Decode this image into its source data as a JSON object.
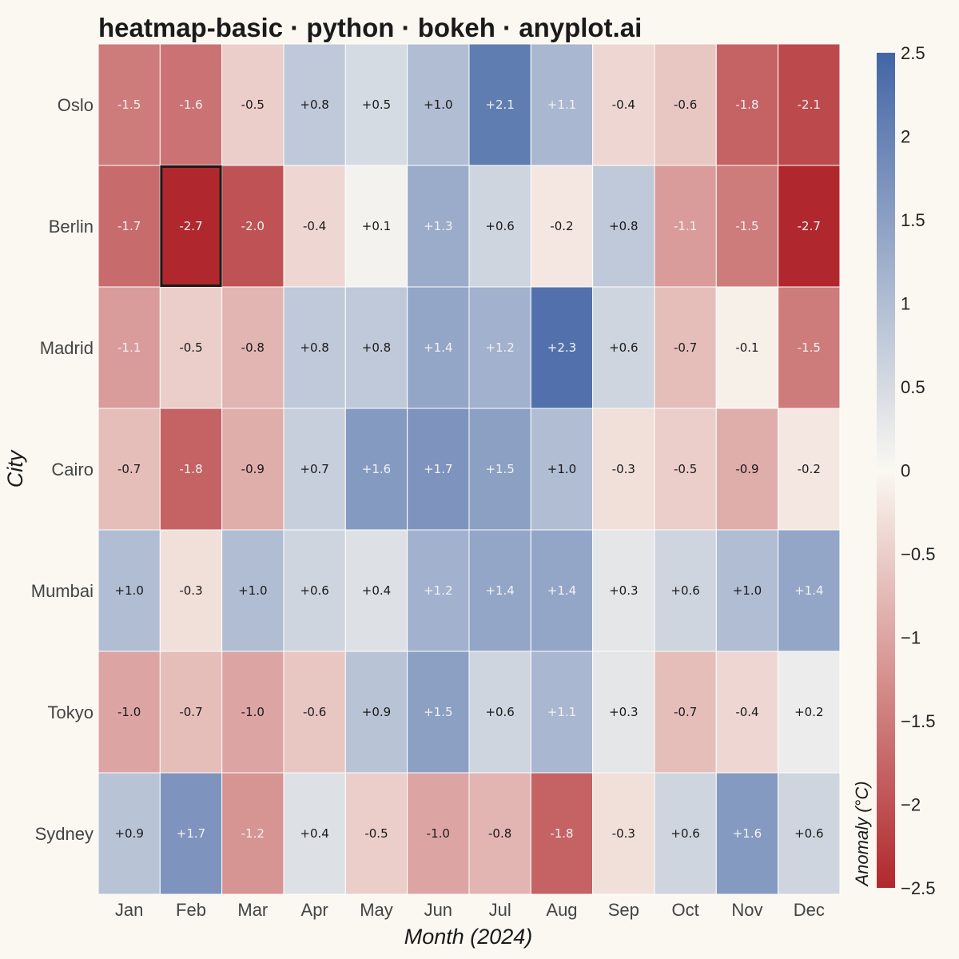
{
  "chart_data": {
    "type": "heatmap",
    "title": "heatmap-basic · python · bokeh · anyplot.ai",
    "xlabel": "Month (2024)",
    "ylabel": "City",
    "colorbar_title": "Anomaly (°C)",
    "x_categories": [
      "Jan",
      "Feb",
      "Mar",
      "Apr",
      "May",
      "Jun",
      "Jul",
      "Aug",
      "Sep",
      "Oct",
      "Nov",
      "Dec"
    ],
    "y_categories": [
      "Oslo",
      "Berlin",
      "Madrid",
      "Cairo",
      "Mumbai",
      "Tokyo",
      "Sydney"
    ],
    "values": [
      [
        -1.5,
        -1.6,
        -0.5,
        0.8,
        0.5,
        1.0,
        2.1,
        1.1,
        -0.4,
        -0.6,
        -1.8,
        -2.1
      ],
      [
        -1.7,
        -2.7,
        -2.0,
        -0.4,
        0.1,
        1.3,
        0.6,
        -0.2,
        0.8,
        -1.1,
        -1.5,
        -2.7
      ],
      [
        -1.1,
        -0.5,
        -0.8,
        0.8,
        0.8,
        1.4,
        1.2,
        2.3,
        0.6,
        -0.7,
        -0.1,
        -1.5
      ],
      [
        -0.7,
        -1.8,
        -0.9,
        0.7,
        1.6,
        1.7,
        1.5,
        1.0,
        -0.3,
        -0.5,
        -0.9,
        -0.2
      ],
      [
        1.0,
        -0.3,
        1.0,
        0.6,
        0.4,
        1.2,
        1.4,
        1.4,
        0.3,
        0.6,
        1.0,
        1.4
      ],
      [
        -1.0,
        -0.7,
        -1.0,
        -0.6,
        0.9,
        1.5,
        0.6,
        1.1,
        0.3,
        -0.7,
        -0.4,
        0.2
      ],
      [
        0.9,
        1.7,
        -1.2,
        0.4,
        -0.5,
        -1.0,
        -0.8,
        -1.8,
        -0.3,
        0.6,
        1.6,
        0.6
      ]
    ],
    "value_labels": [
      [
        "-1.5",
        "-1.6",
        "-0.5",
        "+0.8",
        "+0.5",
        "+1.0",
        "+2.1",
        "+1.1",
        "-0.4",
        "-0.6",
        "-1.8",
        "-2.1"
      ],
      [
        "-1.7",
        "-2.7",
        "-2.0",
        "-0.4",
        "+0.1",
        "+1.3",
        "+0.6",
        "-0.2",
        "+0.8",
        "-1.1",
        "-1.5",
        "-2.7"
      ],
      [
        "-1.1",
        "-0.5",
        "-0.8",
        "+0.8",
        "+0.8",
        "+1.4",
        "+1.2",
        "+2.3",
        "+0.6",
        "-0.7",
        "-0.1",
        "-1.5"
      ],
      [
        "-0.7",
        "-1.8",
        "-0.9",
        "+0.7",
        "+1.6",
        "+1.7",
        "+1.5",
        "+1.0",
        "-0.3",
        "-0.5",
        "-0.9",
        "-0.2"
      ],
      [
        "+1.0",
        "-0.3",
        "+1.0",
        "+0.6",
        "+0.4",
        "+1.2",
        "+1.4",
        "+1.4",
        "+0.3",
        "+0.6",
        "+1.0",
        "+1.4"
      ],
      [
        "-1.0",
        "-0.7",
        "-1.0",
        "-0.6",
        "+0.9",
        "+1.5",
        "+0.6",
        "+1.1",
        "+0.3",
        "-0.7",
        "-0.4",
        "+0.2"
      ],
      [
        "+0.9",
        "+1.7",
        "-1.2",
        "+0.4",
        "-0.5",
        "-1.0",
        "-0.8",
        "-1.8",
        "-0.3",
        "+0.6",
        "+1.6",
        "+0.6"
      ]
    ],
    "color_range": [
      -2.5,
      2.5
    ],
    "colorbar_ticks": [
      "2.5",
      "2",
      "1.5",
      "1",
      "0.5",
      "0",
      "−0.5",
      "−1",
      "−1.5",
      "−2",
      "−2.5"
    ],
    "colorbar_tick_values": [
      2.5,
      2,
      1.5,
      1,
      0.5,
      0,
      -0.5,
      -1,
      -1.5,
      -2,
      -2.5
    ],
    "colors": {
      "negative": "#B0282D",
      "zero": "#FAF8F1",
      "positive": "#4365A6"
    },
    "highlighted_cell": {
      "city": "Berlin",
      "month": "Feb"
    }
  }
}
